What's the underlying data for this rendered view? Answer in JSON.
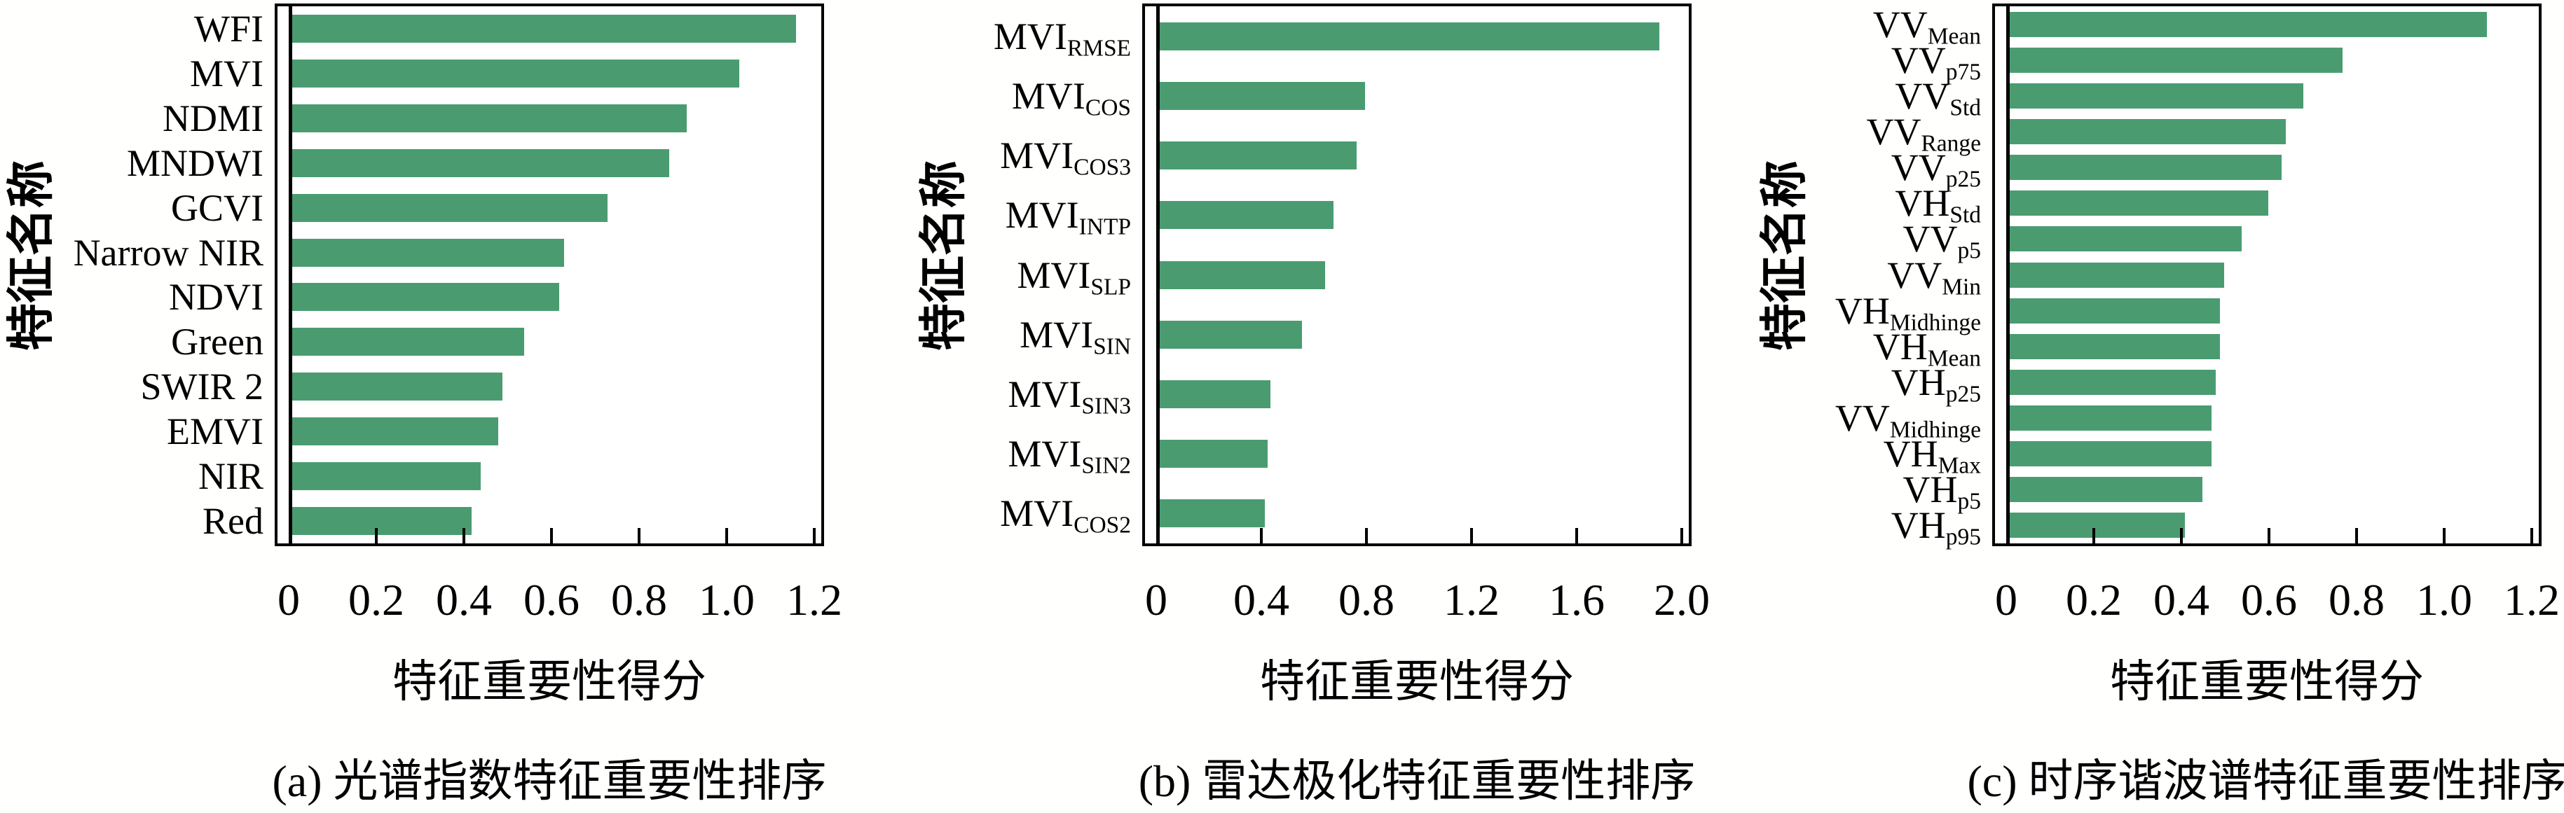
{
  "figure": {
    "background": "#ffffff",
    "bar_color": "#4a9c70",
    "axis_color": "#000000",
    "y_axis_label": "特征名称",
    "x_axis_label": "特征重要性得分"
  },
  "chart_data": [
    {
      "type": "bar",
      "orientation": "horizontal",
      "caption": "(a) 光谱指数特征重要性排序",
      "xlabel": "特征重要性得分",
      "ylabel": "特征名称",
      "xlim": [
        0,
        1.2
      ],
      "xticks": [
        0,
        0.2,
        0.4,
        0.6,
        0.8,
        1.0,
        1.2
      ],
      "xtick_labels": [
        "0",
        "0.2",
        "0.4",
        "0.6",
        "0.8",
        "1.0",
        "1.2"
      ],
      "grid": false,
      "categories": [
        {
          "base": "WFI",
          "sub": ""
        },
        {
          "base": "MVI",
          "sub": ""
        },
        {
          "base": "NDMI",
          "sub": ""
        },
        {
          "base": "MNDWI",
          "sub": ""
        },
        {
          "base": "GCVI",
          "sub": ""
        },
        {
          "base": "Narrow NIR",
          "sub": ""
        },
        {
          "base": "NDVI",
          "sub": ""
        },
        {
          "base": "Green",
          "sub": ""
        },
        {
          "base": "SWIR 2",
          "sub": ""
        },
        {
          "base": "EMVI",
          "sub": ""
        },
        {
          "base": "NIR",
          "sub": ""
        },
        {
          "base": "Red",
          "sub": ""
        }
      ],
      "values": [
        1.15,
        1.02,
        0.9,
        0.86,
        0.72,
        0.62,
        0.61,
        0.53,
        0.48,
        0.47,
        0.43,
        0.41
      ]
    },
    {
      "type": "bar",
      "orientation": "horizontal",
      "caption": "(b) 雷达极化特征重要性排序",
      "xlabel": "特征重要性得分",
      "ylabel": "特征名称",
      "xlim": [
        0,
        2.0
      ],
      "xticks": [
        0,
        0.4,
        0.8,
        1.2,
        1.6,
        2.0
      ],
      "xtick_labels": [
        "0",
        "0.4",
        "0.8",
        "1.2",
        "1.6",
        "2.0"
      ],
      "grid": false,
      "categories": [
        {
          "base": "MVI",
          "sub": "RMSE"
        },
        {
          "base": "MVI",
          "sub": "COS"
        },
        {
          "base": "MVI",
          "sub": "COS3"
        },
        {
          "base": "MVI",
          "sub": "INTP"
        },
        {
          "base": "MVI",
          "sub": "SLP"
        },
        {
          "base": "MVI",
          "sub": "SIN"
        },
        {
          "base": "MVI",
          "sub": "SIN3"
        },
        {
          "base": "MVI",
          "sub": "SIN2"
        },
        {
          "base": "MVI",
          "sub": "COS2"
        }
      ],
      "values": [
        1.9,
        0.78,
        0.75,
        0.66,
        0.63,
        0.54,
        0.42,
        0.41,
        0.4
      ]
    },
    {
      "type": "bar",
      "orientation": "horizontal",
      "caption": "(c) 时序谐波谱特征重要性排序",
      "xlabel": "特征重要性得分",
      "ylabel": "特征名称",
      "xlim": [
        0,
        1.2
      ],
      "xticks": [
        0,
        0.2,
        0.4,
        0.6,
        0.8,
        1.0,
        1.2
      ],
      "xtick_labels": [
        "0",
        "0.2",
        "0.4",
        "0.6",
        "0.8",
        "1.0",
        "1.2"
      ],
      "grid": false,
      "categories": [
        {
          "base": "VV",
          "sub": "Mean"
        },
        {
          "base": "VV",
          "sub": "p75"
        },
        {
          "base": "VV",
          "sub": "Std"
        },
        {
          "base": "VV",
          "sub": "Range"
        },
        {
          "base": "VV",
          "sub": "p25"
        },
        {
          "base": "VH",
          "sub": "Std"
        },
        {
          "base": "VV",
          "sub": "p5"
        },
        {
          "base": "VV",
          "sub": "Min"
        },
        {
          "base": "VH",
          "sub": "Midhinge"
        },
        {
          "base": "VH",
          "sub": "Mean"
        },
        {
          "base": "VH",
          "sub": "p25"
        },
        {
          "base": "VV",
          "sub": "Midhinge"
        },
        {
          "base": "VH",
          "sub": "Max"
        },
        {
          "base": "VH",
          "sub": "p5"
        },
        {
          "base": "VH",
          "sub": "p95"
        }
      ],
      "values": [
        1.09,
        0.76,
        0.67,
        0.63,
        0.62,
        0.59,
        0.53,
        0.49,
        0.48,
        0.48,
        0.47,
        0.46,
        0.46,
        0.44,
        0.4
      ]
    }
  ]
}
